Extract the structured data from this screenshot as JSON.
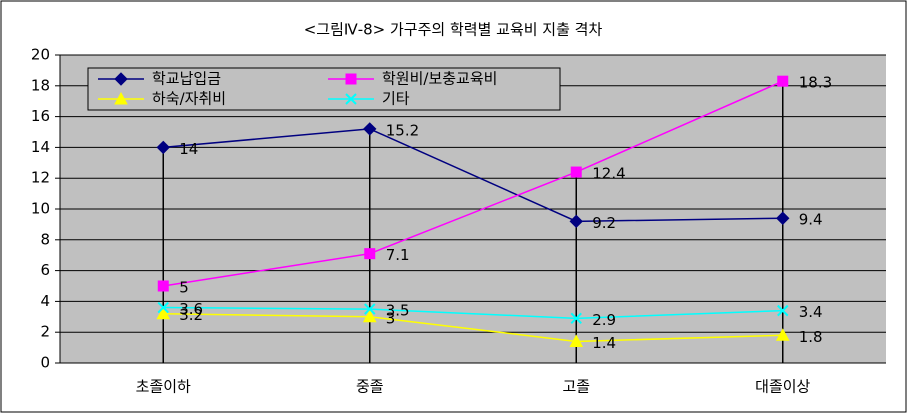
{
  "chart_data": {
    "type": "line",
    "title": "<그림Ⅳ-8> 가구주의 학력별 교육비 지출 격차",
    "categories": [
      "초졸이하",
      "중졸",
      "고졸",
      "대졸이상"
    ],
    "series": [
      {
        "name": "학교납입금",
        "color": "#000080",
        "marker": "diamond",
        "values": [
          14,
          15.2,
          9.2,
          9.4
        ]
      },
      {
        "name": "학원비/보충교육비",
        "color": "#ff00ff",
        "marker": "square",
        "values": [
          5,
          7.1,
          12.4,
          18.3
        ]
      },
      {
        "name": "하숙/자취비",
        "color": "#ffff00",
        "marker": "triangle",
        "values": [
          3.2,
          3,
          1.4,
          1.8
        ]
      },
      {
        "name": "기타",
        "color": "#00ffff",
        "marker": "x",
        "values": [
          3.6,
          3.5,
          2.9,
          3.4
        ]
      }
    ],
    "ylim": [
      0,
      20
    ],
    "yticks": [
      0,
      2,
      4,
      6,
      8,
      10,
      12,
      14,
      16,
      18,
      20
    ],
    "grid": true
  }
}
